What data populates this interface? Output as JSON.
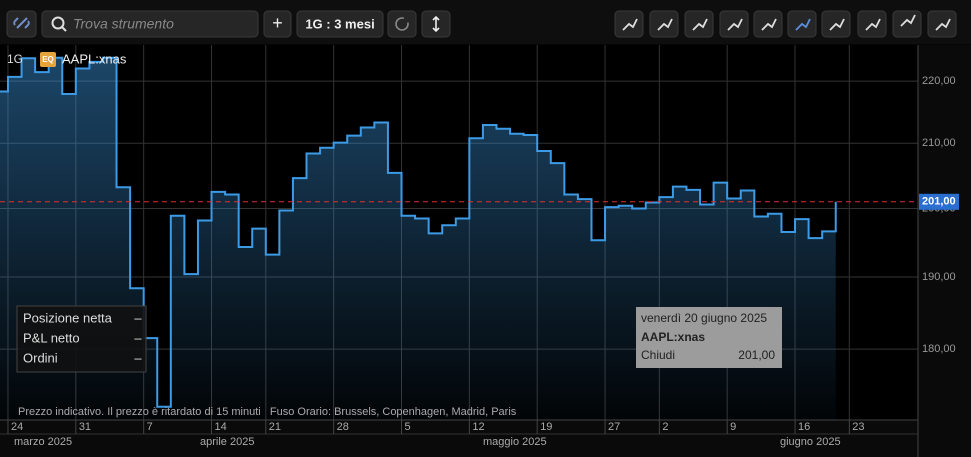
{
  "toolbar": {
    "search_placeholder": "Trova strumento",
    "add": "+",
    "timeframe": "1G : 3 mesi"
  },
  "header": {
    "interval": "1G",
    "badge": "EQ",
    "symbol": "AAPL:xnas"
  },
  "chart_data": {
    "type": "step-area",
    "color": "#3d9be6",
    "log_scale": true,
    "grid": true,
    "y_axis_side": "right",
    "categories": [
      "2025-03-21",
      "2025-03-24",
      "2025-03-25",
      "2025-03-26",
      "2025-03-27",
      "2025-03-28",
      "2025-03-31",
      "2025-04-01",
      "2025-04-02",
      "2025-04-03",
      "2025-04-04",
      "2025-04-07",
      "2025-04-08",
      "2025-04-09",
      "2025-04-10",
      "2025-04-11",
      "2025-04-14",
      "2025-04-15",
      "2025-04-16",
      "2025-04-17",
      "2025-04-21",
      "2025-04-22",
      "2025-04-23",
      "2025-04-24",
      "2025-04-25",
      "2025-04-28",
      "2025-04-29",
      "2025-04-30",
      "2025-05-01",
      "2025-05-02",
      "2025-05-05",
      "2025-05-06",
      "2025-05-07",
      "2025-05-08",
      "2025-05-09",
      "2025-05-12",
      "2025-05-13",
      "2025-05-14",
      "2025-05-15",
      "2025-05-16",
      "2025-05-19",
      "2025-05-20",
      "2025-05-21",
      "2025-05-22",
      "2025-05-23",
      "2025-05-27",
      "2025-05-28",
      "2025-05-29",
      "2025-05-30",
      "2025-06-02",
      "2025-06-03",
      "2025-06-04",
      "2025-06-05",
      "2025-06-06",
      "2025-06-09",
      "2025-06-10",
      "2025-06-11",
      "2025-06-12",
      "2025-06-13",
      "2025-06-16",
      "2025-06-17",
      "2025-06-18",
      "2025-06-20"
    ],
    "series": [
      {
        "name": "AAPL:xnas",
        "values": [
          218.3,
          220.7,
          223.8,
          221.5,
          223.9,
          217.9,
          222.1,
          223.2,
          223.9,
          203.2,
          188.4,
          181.5,
          172.4,
          198.9,
          190.4,
          198.2,
          202.5,
          202.1,
          194.3,
          197.0,
          193.2,
          199.7,
          204.6,
          208.4,
          209.3,
          210.1,
          211.2,
          212.5,
          213.3,
          205.4,
          198.9,
          198.5,
          196.3,
          197.5,
          198.5,
          210.8,
          212.9,
          212.3,
          211.5,
          211.3,
          208.8,
          206.9,
          202.1,
          201.4,
          195.3,
          200.2,
          200.4,
          200.0,
          200.9,
          201.7,
          203.3,
          202.8,
          200.6,
          203.9,
          201.5,
          202.7,
          198.8,
          199.2,
          196.5,
          198.4,
          195.6,
          196.6,
          201.0
        ]
      }
    ],
    "ylim": [
      170.7,
      225.7
    ],
    "yticks": [
      {
        "value": 180,
        "label": "180,00"
      },
      {
        "value": 190,
        "label": "190,00"
      },
      {
        "value": 200,
        "label": "200,00"
      },
      {
        "value": 210,
        "label": "210,00"
      },
      {
        "value": 220,
        "label": "220,00"
      }
    ],
    "xticks": [
      {
        "value": "2025-03-24",
        "label": "24"
      },
      {
        "value": "2025-03-31",
        "label": "31"
      },
      {
        "value": "2025-04-07",
        "label": "7"
      },
      {
        "value": "2025-04-14",
        "label": "14"
      },
      {
        "value": "2025-04-21",
        "label": "21"
      },
      {
        "value": "2025-04-28",
        "label": "28"
      },
      {
        "value": "2025-05-05",
        "label": "5"
      },
      {
        "value": "2025-05-12",
        "label": "12"
      },
      {
        "value": "2025-05-19",
        "label": "19"
      },
      {
        "value": "2025-05-27",
        "label": "27"
      },
      {
        "value": "2025-06-02",
        "label": "2"
      },
      {
        "value": "2025-06-09",
        "label": "9"
      },
      {
        "value": "2025-06-16",
        "label": "16"
      },
      {
        "value": "2025-06-23",
        "label": "23"
      }
    ],
    "months": [
      "marzo 2025",
      "aprile 2025",
      "maggio 2025",
      "giugno 2025"
    ],
    "last_label": "201,00"
  },
  "panel": [
    {
      "label": "Posizione netta",
      "value": "–"
    },
    {
      "label": "P&L netto",
      "value": "–"
    },
    {
      "label": "Ordini",
      "value": "–"
    }
  ],
  "tooltip": {
    "date": "venerdì 20 giugno 2025",
    "symbol": "AAPL:xnas",
    "field": "Chiudi",
    "value": "201,00"
  },
  "footer": "Prezzo indicativo. Il prezzo è ritardato di 15 minuti   Fuso Orario: Brussels, Copenhagen, Madrid, Paris"
}
